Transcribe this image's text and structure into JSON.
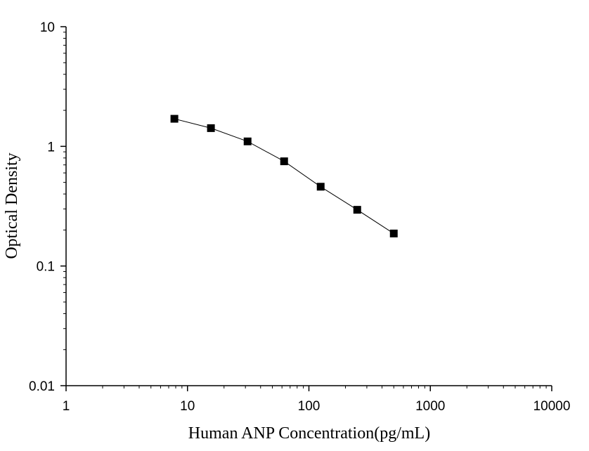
{
  "chart_data": {
    "type": "scatter",
    "xlabel": "Human ANP Concentration(pg/mL)",
    "ylabel": "Optical Density",
    "x_scale": "log",
    "y_scale": "log",
    "xlim": [
      1,
      10000
    ],
    "ylim": [
      0.01,
      10
    ],
    "x_ticks": [
      {
        "value": 1,
        "label": "1"
      },
      {
        "value": 10,
        "label": "10"
      },
      {
        "value": 100,
        "label": "100"
      },
      {
        "value": 1000,
        "label": "1000"
      },
      {
        "value": 10000,
        "label": "10000"
      }
    ],
    "y_ticks": [
      {
        "value": 0.01,
        "label": "0.01"
      },
      {
        "value": 0.1,
        "label": "0.1"
      },
      {
        "value": 1,
        "label": "1"
      },
      {
        "value": 10,
        "label": "10"
      }
    ],
    "grid": false,
    "series": [
      {
        "x": [
          7.8,
          15.6,
          31.25,
          62.5,
          125,
          250,
          500
        ],
        "y": [
          1.7,
          1.42,
          1.1,
          0.75,
          0.46,
          0.295,
          0.187
        ],
        "marker": "square",
        "connected": true,
        "color": "#000000"
      }
    ]
  }
}
